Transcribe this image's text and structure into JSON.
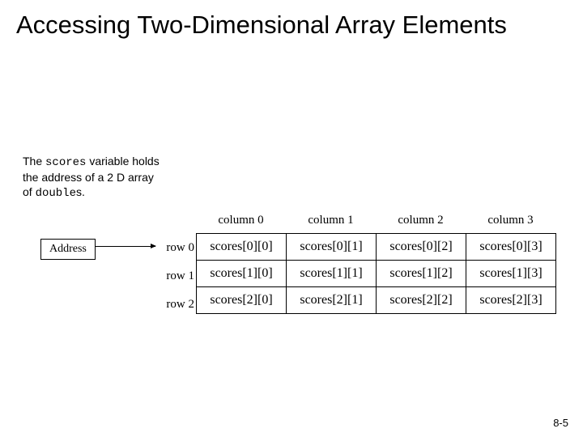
{
  "title": "Accessing Two-Dimensional Array Elements",
  "caption": {
    "pre": "The ",
    "var": "scores",
    "mid": " variable holds the address of a 2 D array of ",
    "type": "double",
    "post": "s."
  },
  "address_label": "Address",
  "col_headers": [
    "column 0",
    "column 1",
    "column 2",
    "column 3"
  ],
  "row_headers": [
    "row 0",
    "row 1",
    "row 2"
  ],
  "cells": [
    [
      "scores[0][0]",
      "scores[0][1]",
      "scores[0][2]",
      "scores[0][3]"
    ],
    [
      "scores[1][0]",
      "scores[1][1]",
      "scores[1][2]",
      "scores[1][3]"
    ],
    [
      "scores[2][0]",
      "scores[2][1]",
      "scores[2][2]",
      "scores[2][3]"
    ]
  ],
  "footer": "8-5",
  "colors": {
    "background": "#ffffff",
    "text": "#000000",
    "border": "#000000"
  }
}
